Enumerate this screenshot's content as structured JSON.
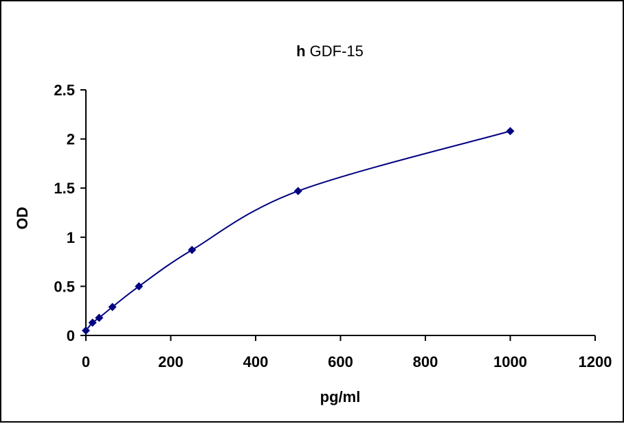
{
  "chart_data": {
    "type": "scatter",
    "title_bold": "h",
    "title_rest": " GDF-15",
    "xlabel": "pg/ml",
    "ylabel": "OD",
    "xlim": [
      0,
      1200
    ],
    "ylim": [
      0,
      2.5
    ],
    "x_ticks": [
      0,
      200,
      400,
      600,
      800,
      1000,
      1200
    ],
    "y_ticks": [
      0,
      0.5,
      1,
      1.5,
      2,
      2.5
    ],
    "x_tick_labels": [
      "0",
      "200",
      "400",
      "600",
      "800",
      "1000",
      "1200"
    ],
    "y_tick_labels": [
      "0",
      "0.5",
      "1",
      "1.5",
      "2",
      "2.5"
    ],
    "grid": false,
    "line": "smoothed",
    "series": [
      {
        "x": [
          0,
          15.6,
          31.25,
          62.5,
          125,
          250,
          500,
          1000
        ],
        "y": [
          0.05,
          0.13,
          0.18,
          0.29,
          0.5,
          0.87,
          1.47,
          2.08
        ]
      }
    ],
    "colors": {
      "series": "#000080",
      "axis": "#000000",
      "frame": "#000000"
    }
  }
}
